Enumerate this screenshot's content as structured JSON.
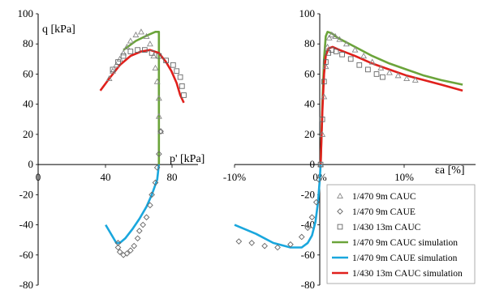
{
  "chart_data": [
    {
      "type": "scatter",
      "title": "",
      "ylabel": "q [kPa]",
      "xlabel": "p' [kPa]",
      "xlim": [
        0,
        90
      ],
      "ylim": [
        -80,
        100
      ],
      "x_ticks": [
        "0",
        "40",
        "80"
      ],
      "y_ticks": [
        "100",
        "80",
        "60",
        "40",
        "20",
        "0",
        "-20",
        "-40",
        "-60",
        "-80"
      ],
      "grid": false,
      "series": [
        {
          "name": "1/470 9m CAUC",
          "marker": "triangle",
          "color": "#888888",
          "points": [
            [
              40,
              57
            ],
            [
              42,
              62
            ],
            [
              44,
              66
            ],
            [
              46,
              70
            ],
            [
              48,
              74
            ],
            [
              50,
              78
            ],
            [
              52,
              82
            ],
            [
              55,
              86
            ],
            [
              58,
              88
            ],
            [
              61,
              85
            ],
            [
              63,
              80
            ],
            [
              65,
              72
            ],
            [
              66,
              64
            ],
            [
              67,
              55
            ],
            [
              68,
              44
            ],
            [
              68,
              32
            ],
            [
              69,
              22
            ]
          ]
        },
        {
          "name": "1/470 9m CAUE",
          "marker": "diamond",
          "color": "#666666",
          "points": [
            [
              69,
              22
            ],
            [
              68,
              7
            ],
            [
              67,
              -2
            ],
            [
              66,
              -12
            ],
            [
              64,
              -20
            ],
            [
              63,
              -27
            ],
            [
              61,
              -35
            ],
            [
              59,
              -40
            ],
            [
              57,
              -44
            ],
            [
              56,
              -49
            ],
            [
              54,
              -54
            ],
            [
              52,
              -57
            ],
            [
              50,
              -59
            ],
            [
              48,
              -60
            ],
            [
              46,
              -58
            ],
            [
              45,
              -55
            ],
            [
              45,
              -52
            ]
          ]
        },
        {
          "name": "1/430 13m CAUC",
          "marker": "square",
          "color": "#666666",
          "points": [
            [
              42,
              63
            ],
            [
              45,
              68
            ],
            [
              48,
              72
            ],
            [
              52,
              75
            ],
            [
              56,
              76
            ],
            [
              60,
              76
            ],
            [
              64,
              74
            ],
            [
              68,
              72
            ],
            [
              72,
              69
            ],
            [
              76,
              66
            ],
            [
              78,
              62
            ],
            [
              80,
              58
            ],
            [
              81,
              52
            ],
            [
              82,
              46
            ]
          ]
        },
        {
          "name": "1/470 9m CAUC simulation",
          "marker": "line",
          "color": "#6ba43a",
          "points": [
            [
              48,
              76
            ],
            [
              55,
              82
            ],
            [
              62,
              86
            ],
            [
              66,
              88
            ],
            [
              68,
              88
            ],
            [
              68,
              80
            ],
            [
              68,
              60
            ],
            [
              68,
              40
            ],
            [
              68,
              20
            ],
            [
              68,
              5
            ],
            [
              68,
              0
            ]
          ]
        },
        {
          "name": "1/470 9m CAUE simulation",
          "marker": "line",
          "color": "#1aa7dd",
          "points": [
            [
              68,
              0
            ],
            [
              67,
              -10
            ],
            [
              64,
              -20
            ],
            [
              61,
              -28
            ],
            [
              57,
              -36
            ],
            [
              53,
              -43
            ],
            [
              49,
              -49
            ],
            [
              46,
              -52
            ],
            [
              44,
              -52
            ],
            [
              42,
              -48
            ],
            [
              38,
              -40
            ]
          ]
        },
        {
          "name": "1/430 13m CAUC simulation",
          "marker": "line",
          "color": "#e0201c",
          "points": [
            [
              35,
              49
            ],
            [
              40,
              57
            ],
            [
              46,
              66
            ],
            [
              52,
              72
            ],
            [
              58,
              75
            ],
            [
              63,
              76
            ],
            [
              68,
              74
            ],
            [
              72,
              68
            ],
            [
              75,
              62
            ],
            [
              78,
              54
            ],
            [
              80,
              46
            ],
            [
              82,
              41
            ]
          ]
        }
      ]
    },
    {
      "type": "scatter",
      "title": "",
      "ylabel": "",
      "xlabel": "εa [%]",
      "xlim": [
        -10,
        18
      ],
      "ylim": [
        -80,
        100
      ],
      "x_ticks": [
        "-10%",
        "0%",
        "10%"
      ],
      "y_ticks": [
        "100",
        "80",
        "60",
        "40",
        "20",
        "0",
        "-20",
        "-40",
        "-60",
        "-80"
      ],
      "grid": false,
      "legend": {
        "position": "bottom-right",
        "entries": [
          {
            "label": "1/470 9m CAUC",
            "marker": "triangle",
            "color": "#888888"
          },
          {
            "label": "1/470 9m CAUE",
            "marker": "diamond",
            "color": "#666666"
          },
          {
            "label": "1/430 13m CAUC",
            "marker": "square",
            "color": "#666666"
          },
          {
            "label": "1/470 9m CAUC simulation",
            "marker": "line",
            "color": "#6ba43a"
          },
          {
            "label": "1/470 9m CAUE simulation",
            "marker": "line",
            "color": "#1aa7dd"
          },
          {
            "label": "1/430 13m CAUC simulation",
            "marker": "line",
            "color": "#e0201c"
          }
        ]
      },
      "series": [
        {
          "name": "1/470 9m CAUC",
          "marker": "triangle",
          "color": "#888888",
          "points": [
            [
              0,
              0
            ],
            [
              0.2,
              20
            ],
            [
              0.4,
              45
            ],
            [
              0.6,
              65
            ],
            [
              0.8,
              78
            ],
            [
              1,
              84
            ],
            [
              1.3,
              86
            ],
            [
              1.7,
              85
            ],
            [
              2.2,
              83
            ],
            [
              3,
              80
            ],
            [
              4,
              76
            ],
            [
              5,
              72
            ],
            [
              6,
              68
            ],
            [
              7,
              64
            ],
            [
              8,
              61
            ],
            [
              9,
              59
            ],
            [
              10,
              57
            ],
            [
              11,
              56
            ]
          ]
        },
        {
          "name": "1/470 9m CAUE",
          "marker": "diamond",
          "color": "#666666",
          "points": [
            [
              -0.2,
              -10
            ],
            [
              -0.5,
              -25
            ],
            [
              -1,
              -35
            ],
            [
              -1.5,
              -42
            ],
            [
              -2.2,
              -48
            ],
            [
              -3.5,
              -53
            ],
            [
              -5,
              -55
            ],
            [
              -6.5,
              -54
            ],
            [
              -8,
              -52
            ],
            [
              -9.5,
              -51
            ]
          ]
        },
        {
          "name": "1/430 13m CAUC",
          "marker": "square",
          "color": "#666666",
          "points": [
            [
              0,
              0
            ],
            [
              0.2,
              30
            ],
            [
              0.4,
              55
            ],
            [
              0.6,
              68
            ],
            [
              0.9,
              74
            ],
            [
              1.3,
              76
            ],
            [
              1.8,
              75
            ],
            [
              2.5,
              73
            ],
            [
              3.5,
              70
            ],
            [
              4.5,
              66
            ],
            [
              5.5,
              63
            ],
            [
              6.5,
              60
            ],
            [
              7.2,
              58
            ]
          ]
        },
        {
          "name": "1/470 9m CAUC simulation",
          "marker": "line",
          "color": "#6ba43a",
          "points": [
            [
              0,
              0
            ],
            [
              0.2,
              40
            ],
            [
              0.4,
              70
            ],
            [
              0.6,
              85
            ],
            [
              0.8,
              88
            ],
            [
              1.3,
              87
            ],
            [
              2,
              84
            ],
            [
              4,
              78
            ],
            [
              6,
              72
            ],
            [
              8,
              67
            ],
            [
              10,
              63
            ],
            [
              12,
              59
            ],
            [
              14,
              56
            ],
            [
              16.5,
              53
            ]
          ]
        },
        {
          "name": "1/470 9m CAUE simulation",
          "marker": "line",
          "color": "#1aa7dd",
          "points": [
            [
              0,
              0
            ],
            [
              -0.1,
              -10
            ],
            [
              -0.3,
              -25
            ],
            [
              -0.6,
              -38
            ],
            [
              -1,
              -47
            ],
            [
              -1.5,
              -52
            ],
            [
              -2.2,
              -55
            ],
            [
              -3.5,
              -55
            ],
            [
              -5.5,
              -52
            ],
            [
              -7.5,
              -46
            ],
            [
              -10,
              -40
            ]
          ]
        },
        {
          "name": "1/430 13m CAUC simulation",
          "marker": "line",
          "color": "#e0201c",
          "points": [
            [
              0,
              0
            ],
            [
              0.2,
              35
            ],
            [
              0.4,
              60
            ],
            [
              0.6,
              72
            ],
            [
              0.9,
              77
            ],
            [
              1.4,
              78
            ],
            [
              2.2,
              76
            ],
            [
              4,
              72
            ],
            [
              6,
              67
            ],
            [
              8,
              63
            ],
            [
              10,
              59
            ],
            [
              12,
              56
            ],
            [
              14,
              53
            ],
            [
              16.5,
              49
            ]
          ]
        }
      ]
    }
  ]
}
